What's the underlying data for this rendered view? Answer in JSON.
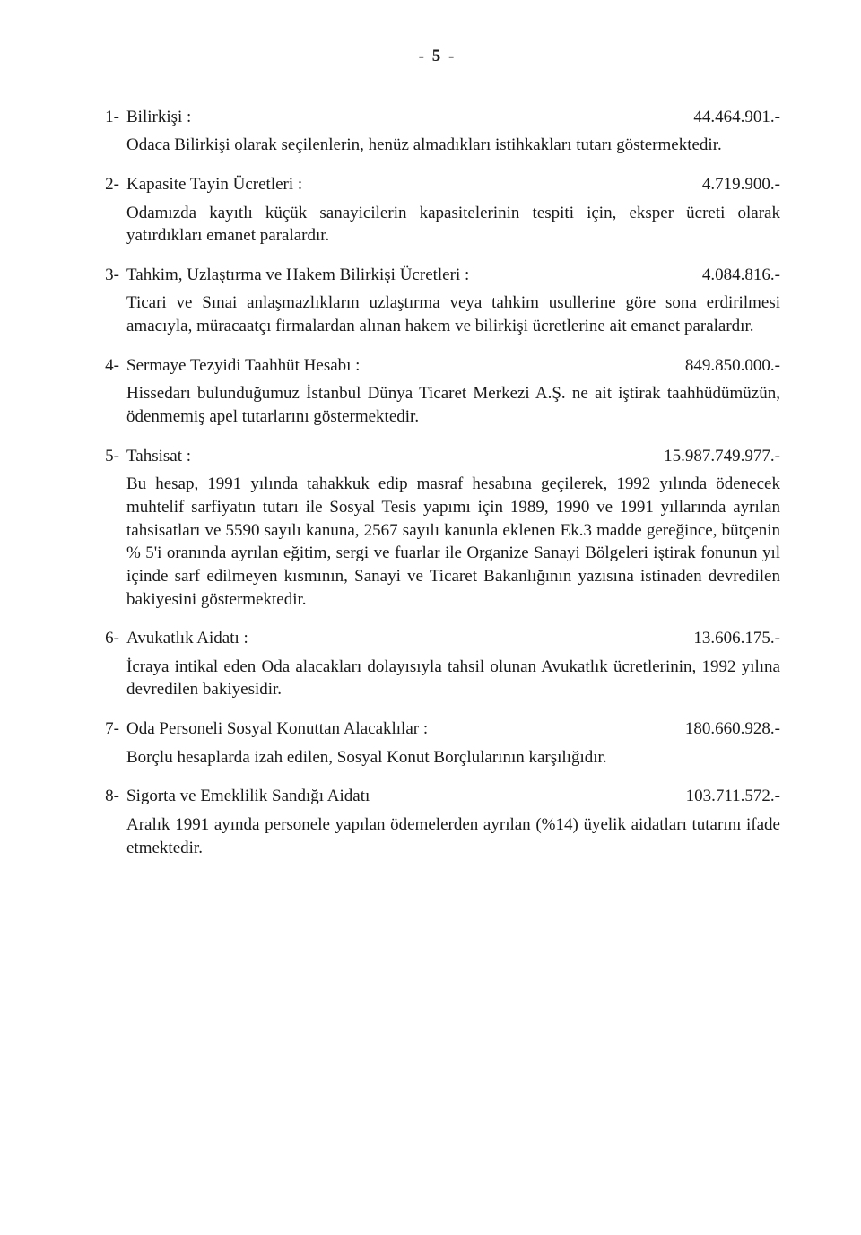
{
  "page_number_label": "-  5  -",
  "items": [
    {
      "num": "1-",
      "title": "Bilirkişi   :",
      "amount": "44.464.901.-",
      "desc": "Odaca Bilirkişi olarak seçilenlerin, henüz almadıkları istihkakları tutarı göstermektedir."
    },
    {
      "num": "2-",
      "title": "Kapasite Tayin Ücretleri   :",
      "amount": "4.719.900.-",
      "desc": "Odamızda kayıtlı küçük sanayicilerin kapasitelerinin tespiti için, eksper ücreti olarak yatırdıkları emanet paralardır."
    },
    {
      "num": "3-",
      "title": "Tahkim, Uzlaştırma ve Hakem Bilirkişi Ücretleri :",
      "amount": "4.084.816.-",
      "desc": "Ticari ve Sınai anlaşmazlıkların uzlaştırma veya tahkim usullerine göre sona erdirilmesi amacıyla, müracaatçı firmalardan alınan hakem ve bilirkişi ücretlerine ait emanet paralardır."
    },
    {
      "num": "4-",
      "title": "Sermaye Tezyidi Taahhüt Hesabı    :",
      "amount": "849.850.000.-",
      "desc": "Hissedarı bulunduğumuz İstanbul Dünya Ticaret Merkezi A.Ş. ne ait iştirak taahhüdümüzün, ödenmemiş apel tutarlarını göstermektedir."
    },
    {
      "num": "5-",
      "title": "Tahsisat     :",
      "amount": "15.987.749.977.-",
      "desc": "Bu hesap, 1991 yılında tahakkuk edip masraf hesabına geçilerek, 1992 yılında ödenecek muhtelif sarfiyatın tutarı ile Sosyal Tesis yapımı için 1989, 1990 ve 1991 yıllarında ayrılan tahsisatları ve 5590 sayılı kanuna, 2567 sayılı kanunla eklenen Ek.3 madde gereğince, bütçenin % 5'i oranında ayrılan eğitim, sergi ve fuarlar ile Organize Sanayi Bölgeleri iştirak fonunun yıl içinde sarf edilmeyen kısmının, Sanayi ve Ticaret Bakanlığının yazısına istinaden devredilen bakiyesini göstermektedir."
    },
    {
      "num": "6-",
      "title": "Avukatlık Aidatı    :",
      "amount": "13.606.175.-",
      "desc": "İcraya intikal eden Oda alacakları dolayısıyla tahsil olunan Avukatlık ücretlerinin, 1992 yılına devredilen bakiyesidir."
    },
    {
      "num": "7-",
      "title": "Oda Personeli Sosyal Konuttan Alacaklılar :",
      "amount": "180.660.928.-",
      "desc": "Borçlu hesaplarda izah edilen, Sosyal Konut Borçlularının karşılığıdır."
    },
    {
      "num": "8-",
      "title": "Sigorta ve Emeklilik Sandığı Aidatı",
      "amount": "103.711.572.-",
      "desc": "Aralık 1991 ayında personele yapılan ödemelerden ayrılan (%14) üyelik aidatları tutarını ifade etmektedir."
    }
  ]
}
